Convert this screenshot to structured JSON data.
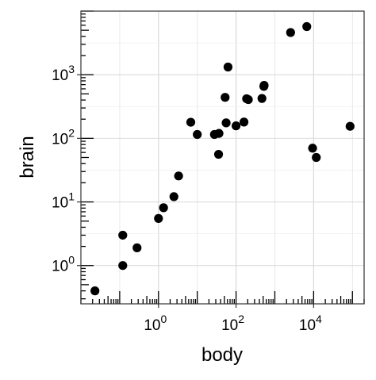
{
  "chart_data": {
    "type": "scatter",
    "title": "",
    "xlabel": "body",
    "ylabel": "brain",
    "x_scale": "log10",
    "y_scale": "log10",
    "xlim": [
      0.01,
      200000
    ],
    "ylim": [
      0.25,
      10000
    ],
    "grid": true,
    "annotation_logticks": true,
    "point_color": "#000000",
    "x_ticks": [
      {
        "base": "10",
        "exp": "0",
        "value": 1
      },
      {
        "base": "10",
        "exp": "2",
        "value": 100
      },
      {
        "base": "10",
        "exp": "4",
        "value": 10000
      }
    ],
    "y_ticks": [
      {
        "base": "10",
        "exp": "0",
        "value": 1
      },
      {
        "base": "10",
        "exp": "1",
        "value": 10
      },
      {
        "base": "10",
        "exp": "2",
        "value": 100
      },
      {
        "base": "10",
        "exp": "3",
        "value": 1000
      }
    ],
    "points": [
      {
        "x": 0.023,
        "y": 0.4
      },
      {
        "x": 0.12,
        "y": 1.0
      },
      {
        "x": 0.12,
        "y": 3.0
      },
      {
        "x": 0.28,
        "y": 1.9
      },
      {
        "x": 1.0,
        "y": 5.5
      },
      {
        "x": 1.35,
        "y": 8.1
      },
      {
        "x": 2.5,
        "y": 12.1
      },
      {
        "x": 3.3,
        "y": 25.6
      },
      {
        "x": 6.8,
        "y": 179
      },
      {
        "x": 10.0,
        "y": 115
      },
      {
        "x": 27.7,
        "y": 115
      },
      {
        "x": 35.4,
        "y": 56
      },
      {
        "x": 36.3,
        "y": 119.5
      },
      {
        "x": 52.2,
        "y": 440
      },
      {
        "x": 62.0,
        "y": 1320
      },
      {
        "x": 55.5,
        "y": 175
      },
      {
        "x": 100,
        "y": 157
      },
      {
        "x": 160,
        "y": 180
      },
      {
        "x": 187,
        "y": 419
      },
      {
        "x": 207,
        "y": 406
      },
      {
        "x": 465,
        "y": 423
      },
      {
        "x": 521,
        "y": 655
      },
      {
        "x": 529,
        "y": 680
      },
      {
        "x": 2547,
        "y": 4603
      },
      {
        "x": 6654,
        "y": 5712
      },
      {
        "x": 9400,
        "y": 70
      },
      {
        "x": 11700,
        "y": 50
      },
      {
        "x": 87000,
        "y": 154.5
      }
    ]
  }
}
